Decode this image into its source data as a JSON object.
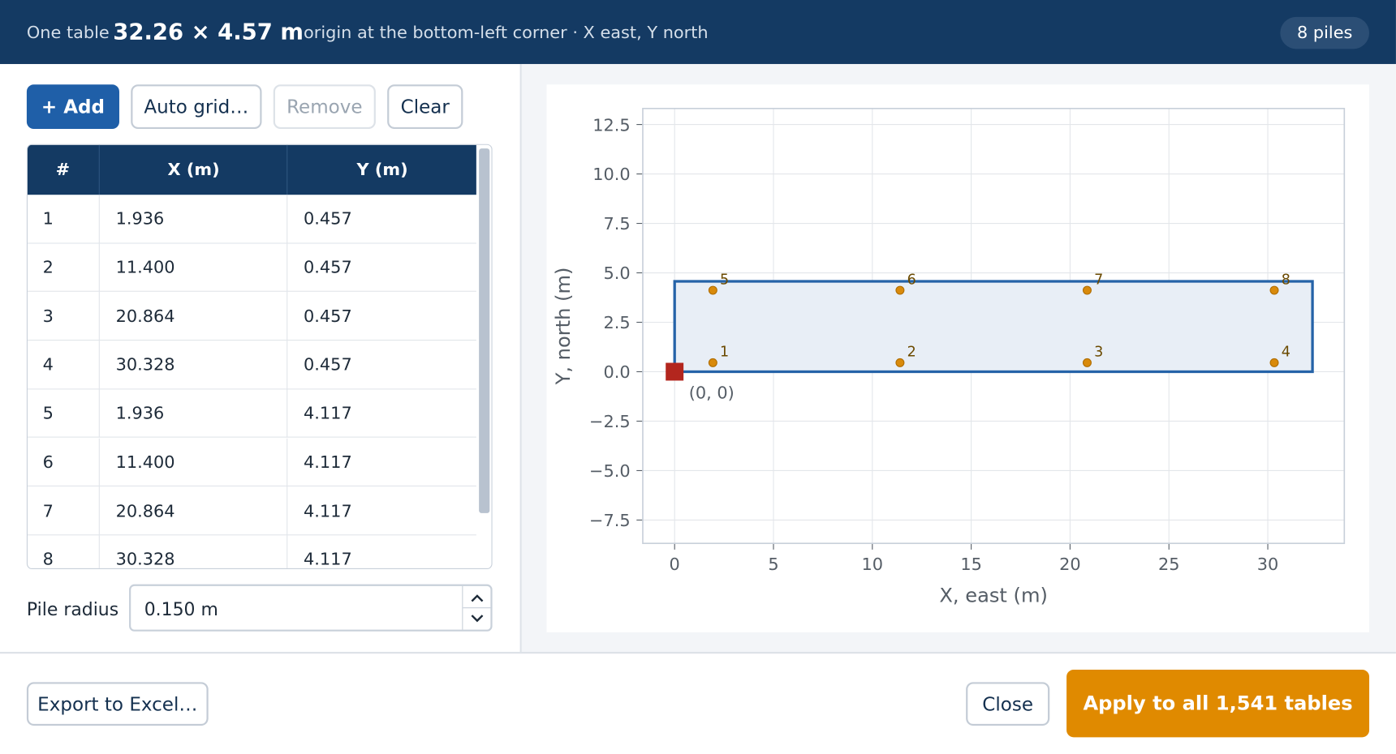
{
  "header": {
    "prefix": "One table",
    "dimensions": "32.26 × 4.57 m",
    "description": "origin at the bottom-left corner · X east, Y north",
    "badge": "8 piles"
  },
  "toolbar": {
    "buttons": [
      "+ Add",
      "Auto grid…",
      "Remove",
      "Clear"
    ]
  },
  "table": {
    "columns": [
      "#",
      "X (m)",
      "Y (m)"
    ],
    "rows": [
      [
        "1",
        "1.936",
        "0.457"
      ],
      [
        "2",
        "11.400",
        "0.457"
      ],
      [
        "3",
        "20.864",
        "0.457"
      ],
      [
        "4",
        "30.328",
        "0.457"
      ],
      [
        "5",
        "1.936",
        "4.117"
      ],
      [
        "6",
        "11.400",
        "4.117"
      ],
      [
        "7",
        "20.864",
        "4.117"
      ],
      [
        "8",
        "30.328",
        "4.117"
      ]
    ]
  },
  "pile_radius": {
    "label": "Pile radius",
    "value": "0.150 m"
  },
  "plot": {
    "type": "scatter",
    "xlabel": "X, east (m)",
    "ylabel": "Y, north (m)",
    "xlim": [
      -1.61,
      33.87
    ],
    "ylim": [
      -8.68,
      13.31
    ],
    "xticks": [
      0,
      5,
      10,
      15,
      20,
      25,
      30
    ],
    "yticks": [
      {
        "value": -7.5,
        "label": "−7.5"
      },
      {
        "value": -5,
        "label": "−5.0"
      },
      {
        "value": -2.5,
        "label": "−2.5"
      },
      {
        "value": 0,
        "label": "0.0"
      },
      2.5,
      {
        "value": 5,
        "label": "5.0"
      },
      7.5,
      {
        "value": 10,
        "label": "10.0"
      },
      12.5
    ],
    "grid": true,
    "outline": {
      "width": 32.26,
      "height": 4.57,
      "color": "#2563a8"
    },
    "origin": {
      "x": 0,
      "y": 0,
      "label": "(0, 0)",
      "color": "#b3261e"
    },
    "points": {
      "color": "#d98a0b",
      "labels": [
        "1",
        "2",
        "3",
        "4",
        "5",
        "6",
        "7",
        "8"
      ],
      "x": [
        1.936,
        11.4,
        20.864,
        30.328,
        1.936,
        11.4,
        20.864,
        30.328
      ],
      "y": [
        0.457,
        0.457,
        0.457,
        0.457,
        4.117,
        4.117,
        4.117,
        4.117
      ]
    }
  },
  "footer": {
    "export": "Export to Excel…",
    "close": "Close",
    "apply": "Apply to all 1,541 tables"
  }
}
